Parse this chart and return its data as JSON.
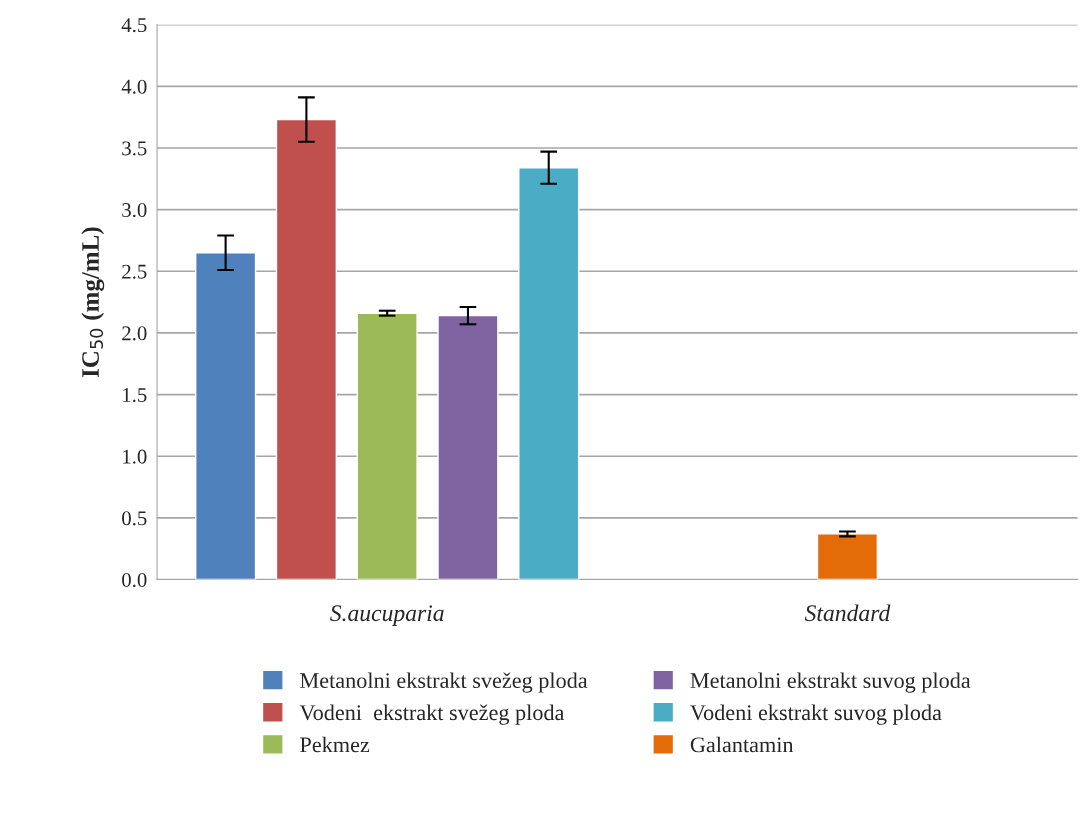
{
  "chart_data": {
    "type": "bar",
    "ylabel": "IC$_{50}$ (mg/mL)",
    "categories": [
      "S.aucuparia",
      "Standard"
    ],
    "series": [
      {
        "name": "Metanolni ekstrakt svežeg ploda",
        "color": "#4f81bd",
        "values": [
          2.65,
          null
        ],
        "errors": [
          0.14,
          null
        ]
      },
      {
        "name": "Vodeni  ekstrakt svežeg ploda",
        "color": "#c0504d",
        "values": [
          3.73,
          null
        ],
        "errors": [
          0.18,
          null
        ]
      },
      {
        "name": "Pekmez",
        "color": "#9bbb59",
        "values": [
          2.16,
          null
        ],
        "errors": [
          0.02,
          null
        ]
      },
      {
        "name": "Metanolni ekstrakt suvog ploda",
        "color": "#8064a2",
        "values": [
          2.14,
          null
        ],
        "errors": [
          0.07,
          null
        ]
      },
      {
        "name": "Vodeni ekstrakt suvog ploda",
        "color": "#4bacc6",
        "values": [
          3.34,
          null
        ],
        "errors": [
          0.13,
          null
        ]
      },
      {
        "name": "Galantamin",
        "color": "#e36c09",
        "values": [
          null,
          0.37
        ],
        "errors": [
          null,
          0.02
        ]
      }
    ],
    "ylim": [
      0,
      4.5
    ],
    "yticks": [
      {
        "value": 0,
        "label": "0.0"
      },
      {
        "value": 0.5,
        "label": "0.5"
      },
      {
        "value": 1,
        "label": "1.0"
      },
      {
        "value": 1.5,
        "label": "1.5"
      },
      {
        "value": 2,
        "label": "2.0"
      },
      {
        "value": 2.5,
        "label": "2.5"
      },
      {
        "value": 3,
        "label": "3.0"
      },
      {
        "value": 3.5,
        "label": "3.5"
      },
      {
        "value": 4,
        "label": "4.0"
      },
      {
        "value": 4.5,
        "label": "4.5"
      }
    ],
    "grid": "y",
    "legend": "bottom"
  }
}
